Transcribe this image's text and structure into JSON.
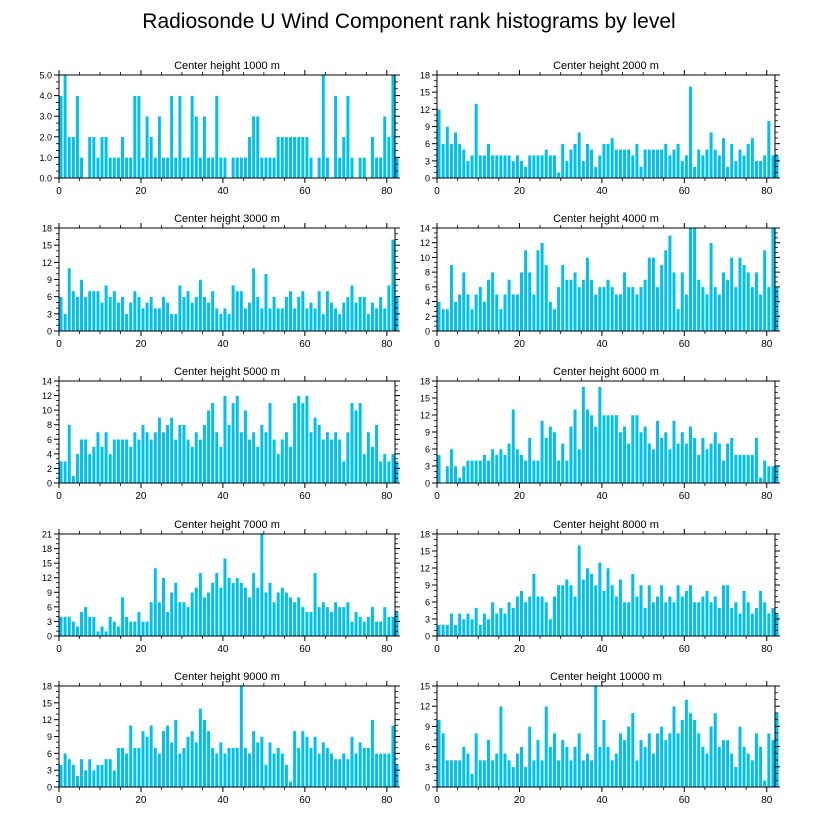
{
  "title": "Radiosonde U Wind Component rank histograms by level",
  "colors": {
    "bar": "#00c0f0",
    "bar_stroke": "#ffffff",
    "axis": "#000000"
  },
  "chart_data": [
    {
      "type": "bar",
      "title": "Center height 1000 m",
      "xlim": [
        0,
        82
      ],
      "xticks": [
        0,
        20,
        40,
        60,
        80
      ],
      "ylim": [
        0,
        5
      ],
      "yticks": [
        "0.0",
        "1.0",
        "2.0",
        "3.0",
        "4.0",
        "5.0"
      ],
      "values": [
        4,
        5,
        2,
        2,
        4,
        1,
        0,
        2,
        2,
        1,
        2,
        2,
        1,
        1,
        1,
        2,
        1,
        1,
        4,
        4,
        1,
        3,
        2,
        1,
        3,
        1,
        1,
        4,
        1,
        4,
        1,
        1,
        4,
        3,
        1,
        3,
        1,
        1,
        4,
        1,
        1,
        0,
        1,
        1,
        1,
        1,
        2,
        3,
        3,
        1,
        1,
        1,
        1,
        2,
        2,
        2,
        2,
        2,
        2,
        2,
        2,
        1,
        0,
        1,
        5,
        1,
        0,
        4,
        1,
        2,
        4,
        1,
        0,
        1,
        1,
        0,
        2,
        1,
        1,
        3,
        2,
        5,
        1
      ]
    },
    {
      "type": "bar",
      "title": "Center height 2000 m",
      "xlim": [
        0,
        82
      ],
      "xticks": [
        0,
        20,
        40,
        60,
        80
      ],
      "ylim": [
        0,
        18
      ],
      "yticks": [
        "0",
        "3",
        "6",
        "9",
        "12",
        "15",
        "18"
      ],
      "values": [
        12,
        6,
        9,
        6,
        8,
        6,
        5,
        3,
        4,
        13,
        4,
        4,
        6,
        4,
        4,
        4,
        4,
        4,
        3,
        4,
        3,
        2,
        4,
        4,
        4,
        4,
        5,
        4,
        4,
        1,
        6,
        3,
        5,
        6,
        8,
        3,
        6,
        5,
        2,
        4,
        6,
        6,
        7,
        5,
        5,
        5,
        5,
        4,
        6,
        2,
        5,
        5,
        5,
        5,
        5,
        6,
        4,
        5,
        6,
        3,
        4,
        16,
        2,
        5,
        4,
        5,
        8,
        5,
        4,
        7,
        2,
        6,
        3,
        5,
        4,
        6,
        7,
        3,
        3,
        4,
        10,
        4,
        4
      ]
    },
    {
      "type": "bar",
      "title": "Center height 3000 m",
      "xlim": [
        0,
        82
      ],
      "xticks": [
        0,
        20,
        40,
        60,
        80
      ],
      "ylim": [
        0,
        18
      ],
      "yticks": [
        "0",
        "3",
        "6",
        "9",
        "12",
        "15",
        "18"
      ],
      "values": [
        6,
        3,
        11,
        7,
        6,
        9,
        6,
        7,
        7,
        7,
        5,
        8,
        6,
        7,
        5,
        6,
        3,
        5,
        7,
        6,
        4,
        5,
        6,
        4,
        4,
        6,
        5,
        3,
        3,
        8,
        6,
        7,
        5,
        6,
        9,
        6,
        5,
        7,
        4,
        3,
        4,
        3,
        8,
        7,
        7,
        4,
        5,
        11,
        6,
        4,
        10,
        4,
        6,
        4,
        4,
        6,
        7,
        4,
        6,
        7,
        4,
        5,
        4,
        7,
        3,
        7,
        5,
        4,
        3,
        5,
        6,
        8,
        5,
        6,
        6,
        3,
        5,
        4,
        6,
        4,
        8,
        16,
        6
      ]
    },
    {
      "type": "bar",
      "title": "Center height 4000 m",
      "xlim": [
        0,
        82
      ],
      "xticks": [
        0,
        20,
        40,
        60,
        80
      ],
      "ylim": [
        0,
        14
      ],
      "yticks": [
        "0",
        "2",
        "4",
        "6",
        "8",
        "10",
        "12",
        "14"
      ],
      "values": [
        4,
        3,
        3,
        9,
        4,
        5,
        8,
        5,
        3,
        5,
        6,
        4,
        7,
        8,
        5,
        3,
        5,
        7,
        5,
        5,
        8,
        11,
        8,
        5,
        11,
        12,
        9,
        4,
        3,
        6,
        9,
        7,
        7,
        8,
        6,
        7,
        10,
        7,
        5,
        6,
        6,
        7,
        6,
        5,
        5,
        8,
        6,
        6,
        5,
        6,
        7,
        10,
        10,
        6,
        9,
        11,
        13,
        8,
        3,
        8,
        5,
        14,
        14,
        7,
        6,
        5,
        12,
        6,
        5,
        8,
        7,
        10,
        6,
        10,
        9,
        8,
        6,
        8,
        5,
        11,
        6,
        14,
        6
      ]
    },
    {
      "type": "bar",
      "title": "Center height 5000 m",
      "xlim": [
        0,
        82
      ],
      "xticks": [
        0,
        20,
        40,
        60,
        80
      ],
      "ylim": [
        0,
        14
      ],
      "yticks": [
        "0",
        "2",
        "4",
        "6",
        "8",
        "10",
        "12",
        "14"
      ],
      "values": [
        3,
        3,
        8,
        1,
        4,
        6,
        6,
        4,
        5,
        7,
        5,
        7,
        4,
        6,
        6,
        6,
        6,
        5,
        7,
        6,
        8,
        7,
        6,
        7,
        9,
        7,
        8,
        9,
        6,
        8,
        8,
        6,
        5,
        7,
        6,
        8,
        10,
        11,
        7,
        5,
        12,
        8,
        11,
        12,
        7,
        10,
        6,
        7,
        5,
        8,
        7,
        11,
        6,
        4,
        6,
        7,
        5,
        11,
        12,
        11,
        12,
        7,
        9,
        8,
        6,
        7,
        6,
        7,
        6,
        3,
        7,
        11,
        10,
        11,
        4,
        7,
        5,
        8,
        3,
        4,
        3,
        4,
        3
      ]
    },
    {
      "type": "bar",
      "title": "Center height 6000 m",
      "xlim": [
        0,
        82
      ],
      "xticks": [
        0,
        20,
        40,
        60,
        80
      ],
      "ylim": [
        0,
        18
      ],
      "yticks": [
        "0",
        "3",
        "6",
        "9",
        "12",
        "15",
        "18"
      ],
      "values": [
        5,
        0,
        3,
        6,
        3,
        1,
        3,
        4,
        4,
        4,
        4,
        5,
        4,
        6,
        5,
        6,
        5,
        7,
        13,
        6,
        5,
        4,
        8,
        4,
        4,
        11,
        8,
        10,
        9,
        4,
        7,
        4,
        10,
        13,
        6,
        17,
        13,
        12,
        10,
        17,
        12,
        12,
        12,
        12,
        9,
        10,
        7,
        12,
        12,
        9,
        10,
        7,
        6,
        11,
        8,
        9,
        6,
        11,
        7,
        9,
        7,
        10,
        8,
        5,
        8,
        6,
        7,
        9,
        7,
        4,
        7,
        8,
        5,
        5,
        5,
        5,
        5,
        8,
        1,
        4,
        3,
        3,
        3
      ]
    },
    {
      "type": "bar",
      "title": "Center height 7000 m",
      "xlim": [
        0,
        82
      ],
      "xticks": [
        0,
        20,
        40,
        60,
        80
      ],
      "ylim": [
        0,
        21
      ],
      "yticks": [
        "0",
        "3",
        "6",
        "9",
        "12",
        "15",
        "18",
        "21"
      ],
      "values": [
        4,
        4,
        4,
        3,
        2,
        5,
        6,
        4,
        4,
        1,
        2,
        1,
        4,
        3,
        2,
        8,
        4,
        3,
        3,
        5,
        3,
        3,
        7,
        14,
        7,
        12,
        5,
        9,
        11,
        7,
        7,
        6,
        9,
        10,
        13,
        8,
        9,
        11,
        13,
        10,
        16,
        12,
        11,
        12,
        11,
        10,
        8,
        13,
        10,
        21,
        9,
        11,
        7,
        9,
        10,
        9,
        8,
        7,
        8,
        6,
        5,
        5,
        13,
        6,
        7,
        6,
        5,
        7,
        6,
        6,
        7,
        3,
        5,
        4,
        3,
        4,
        6,
        3,
        3,
        6,
        4,
        4,
        5
      ]
    },
    {
      "type": "bar",
      "title": "Center height 8000 m",
      "xlim": [
        0,
        82
      ],
      "xticks": [
        0,
        20,
        40,
        60,
        80
      ],
      "ylim": [
        0,
        18
      ],
      "yticks": [
        "0",
        "3",
        "6",
        "9",
        "12",
        "15",
        "18"
      ],
      "values": [
        2,
        2,
        2,
        4,
        2,
        4,
        3,
        4,
        3,
        5,
        2,
        4,
        3,
        6,
        4,
        5,
        4,
        6,
        5,
        7,
        8,
        6,
        7,
        11,
        7,
        7,
        6,
        3,
        7,
        9,
        9,
        10,
        9,
        7,
        16,
        10,
        12,
        11,
        9,
        13,
        8,
        12,
        9,
        7,
        10,
        6,
        6,
        11,
        7,
        9,
        5,
        9,
        6,
        7,
        9,
        6,
        7,
        6,
        9,
        7,
        8,
        9,
        6,
        6,
        7,
        8,
        6,
        7,
        5,
        9,
        9,
        5,
        6,
        4,
        8,
        6,
        4,
        5,
        8,
        6,
        4,
        5,
        4
      ]
    },
    {
      "type": "bar",
      "title": "Center height 9000 m",
      "xlim": [
        0,
        82
      ],
      "xticks": [
        0,
        20,
        40,
        60,
        80
      ],
      "ylim": [
        0,
        18
      ],
      "yticks": [
        "0",
        "3",
        "6",
        "9",
        "12",
        "15",
        "18"
      ],
      "values": [
        4,
        6,
        5,
        4,
        2,
        5,
        3,
        5,
        3,
        4,
        4,
        5,
        5,
        3,
        7,
        7,
        6,
        11,
        7,
        7,
        10,
        9,
        11,
        7,
        6,
        10,
        11,
        8,
        12,
        6,
        7,
        9,
        10,
        8,
        14,
        12,
        10,
        7,
        6,
        8,
        6,
        7,
        7,
        7,
        18,
        7,
        6,
        10,
        8,
        9,
        4,
        8,
        6,
        7,
        6,
        4,
        1,
        10,
        7,
        10,
        9,
        7,
        9,
        6,
        8,
        7,
        6,
        5,
        5,
        6,
        5,
        9,
        6,
        8,
        7,
        7,
        12,
        6,
        6,
        6,
        6,
        11,
        4
      ]
    },
    {
      "type": "bar",
      "title": "Center height 10000 m",
      "xlim": [
        0,
        82
      ],
      "xticks": [
        0,
        20,
        40,
        60,
        80
      ],
      "ylim": [
        0,
        15
      ],
      "yticks": [
        "0",
        "3",
        "6",
        "9",
        "12",
        "15"
      ],
      "values": [
        10,
        8,
        4,
        4,
        4,
        4,
        6,
        5,
        2,
        8,
        4,
        4,
        7,
        4,
        5,
        12,
        5,
        4,
        3,
        5,
        6,
        3,
        9,
        4,
        7,
        4,
        12,
        6,
        8,
        4,
        7,
        6,
        4,
        6,
        8,
        4,
        5,
        4,
        15,
        6,
        10,
        6,
        4,
        5,
        8,
        7,
        9,
        11,
        4,
        7,
        6,
        8,
        5,
        8,
        9,
        7,
        8,
        12,
        8,
        10,
        13,
        11,
        10,
        8,
        6,
        5,
        9,
        11,
        6,
        7,
        7,
        5,
        3,
        9,
        6,
        5,
        4,
        8,
        6,
        1,
        8,
        7,
        11
      ]
    }
  ]
}
